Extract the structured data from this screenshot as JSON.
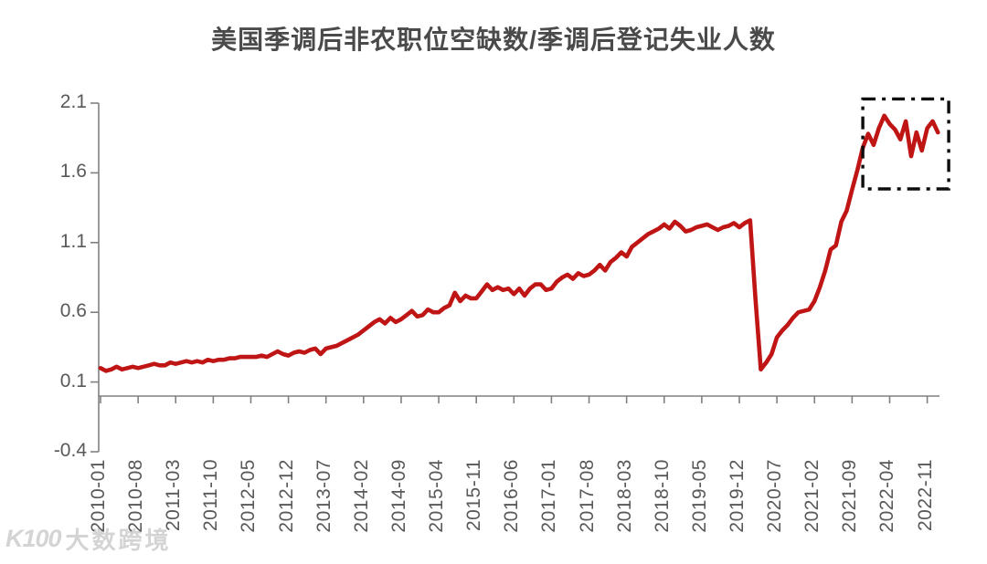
{
  "chart_data": {
    "type": "line",
    "title": "美国季调后非农职位空缺数/季调后登记失业人数",
    "x_start": "2010-01",
    "x_end": "2023-01",
    "x_frequency": "monthly",
    "x_tick_interval_months": 7,
    "x_tick_labels": [
      "2010-01",
      "2010-08",
      "2011-03",
      "2011-10",
      "2012-05",
      "2012-12",
      "2013-07",
      "2014-02",
      "2014-09",
      "2015-04",
      "2015-11",
      "2016-06",
      "2017-01",
      "2017-08",
      "2018-03",
      "2018-10",
      "2019-05",
      "2019-12",
      "2020-07",
      "2021-02",
      "2021-09",
      "2022-04",
      "2022-11"
    ],
    "y_tick_labels": [
      "2.1",
      "1.6",
      "1.1",
      "0.6",
      "0.1",
      "-0.4"
    ],
    "ylim": [
      -0.4,
      2.1
    ],
    "grid": false,
    "legend": "none",
    "line_color": "#c01515",
    "values": [
      0.2,
      0.18,
      0.19,
      0.21,
      0.19,
      0.2,
      0.21,
      0.2,
      0.21,
      0.22,
      0.23,
      0.22,
      0.22,
      0.24,
      0.23,
      0.24,
      0.25,
      0.24,
      0.25,
      0.24,
      0.26,
      0.25,
      0.26,
      0.26,
      0.27,
      0.27,
      0.28,
      0.28,
      0.28,
      0.28,
      0.29,
      0.28,
      0.3,
      0.32,
      0.3,
      0.29,
      0.31,
      0.32,
      0.31,
      0.33,
      0.34,
      0.3,
      0.34,
      0.35,
      0.36,
      0.38,
      0.4,
      0.42,
      0.44,
      0.47,
      0.5,
      0.53,
      0.55,
      0.52,
      0.56,
      0.53,
      0.55,
      0.58,
      0.61,
      0.57,
      0.58,
      0.62,
      0.6,
      0.6,
      0.63,
      0.65,
      0.74,
      0.68,
      0.72,
      0.7,
      0.7,
      0.75,
      0.8,
      0.76,
      0.78,
      0.76,
      0.77,
      0.73,
      0.77,
      0.72,
      0.77,
      0.8,
      0.8,
      0.76,
      0.77,
      0.82,
      0.85,
      0.87,
      0.84,
      0.88,
      0.86,
      0.87,
      0.9,
      0.94,
      0.9,
      0.96,
      0.99,
      1.03,
      1.0,
      1.07,
      1.1,
      1.13,
      1.16,
      1.18,
      1.2,
      1.23,
      1.2,
      1.25,
      1.22,
      1.18,
      1.19,
      1.21,
      1.22,
      1.23,
      1.21,
      1.19,
      1.21,
      1.22,
      1.24,
      1.21,
      1.24,
      1.26,
      0.7,
      0.19,
      0.24,
      0.3,
      0.42,
      0.47,
      0.51,
      0.56,
      0.6,
      0.61,
      0.62,
      0.68,
      0.78,
      0.9,
      1.05,
      1.08,
      1.25,
      1.33,
      1.48,
      1.62,
      1.78,
      1.88,
      1.8,
      1.92,
      2.01,
      1.95,
      1.91,
      1.84,
      1.97,
      1.72,
      1.89,
      1.76,
      1.92,
      1.97,
      1.89
    ],
    "highlight_box": {
      "style": "dash-dot",
      "color": "#0d0d0d",
      "x_from": "2021-11",
      "x_to": "2023-03",
      "y_from": 1.485,
      "y_to": 2.13
    }
  },
  "watermark": {
    "logo": "K100",
    "text": "大数跨境"
  }
}
